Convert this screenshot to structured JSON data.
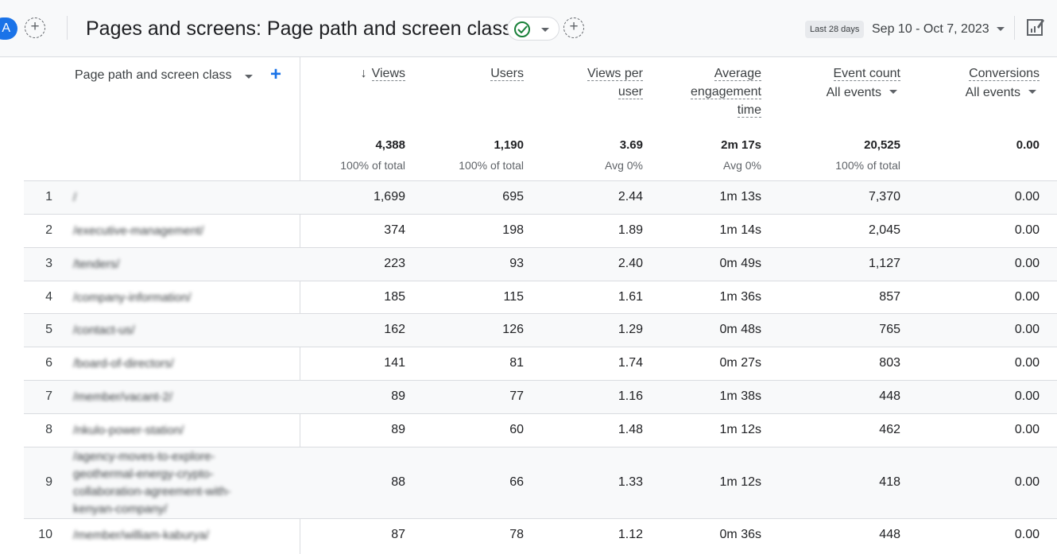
{
  "header": {
    "avatar_letter": "A",
    "title": "Pages and screens: Page path and screen class",
    "date_badge": "Last 28 days",
    "date_range": "Sep 10 - Oct 7, 2023"
  },
  "table": {
    "dimension_label": "Page path and screen class",
    "columns": [
      {
        "lines": [
          "Views"
        ],
        "sort": "↓"
      },
      {
        "lines": [
          "Users"
        ]
      },
      {
        "lines": [
          "Views per",
          "user"
        ]
      },
      {
        "lines": [
          "Average",
          "engagement",
          "time"
        ]
      },
      {
        "lines": [
          "Event count"
        ],
        "sub": "All events"
      },
      {
        "lines": [
          "Conversions"
        ],
        "sub": "All events"
      }
    ],
    "totals": [
      {
        "value": "4,388",
        "sub": "100% of total"
      },
      {
        "value": "1,190",
        "sub": "100% of total"
      },
      {
        "value": "3.69",
        "sub": "Avg 0%"
      },
      {
        "value": "2m 17s",
        "sub": "Avg 0%"
      },
      {
        "value": "20,525",
        "sub": "100% of total"
      },
      {
        "value": "0.00",
        "sub": ""
      }
    ],
    "rows": [
      {
        "rank": "1",
        "path": [
          "/"
        ],
        "values": [
          "1,699",
          "695",
          "2.44",
          "1m 13s",
          "7,370",
          "0.00"
        ]
      },
      {
        "rank": "2",
        "path": [
          "/executive-management/"
        ],
        "values": [
          "374",
          "198",
          "1.89",
          "1m 14s",
          "2,045",
          "0.00"
        ]
      },
      {
        "rank": "3",
        "path": [
          "/tenders/"
        ],
        "values": [
          "223",
          "93",
          "2.40",
          "0m 49s",
          "1,127",
          "0.00"
        ]
      },
      {
        "rank": "4",
        "path": [
          "/company-information/"
        ],
        "values": [
          "185",
          "115",
          "1.61",
          "1m 36s",
          "857",
          "0.00"
        ]
      },
      {
        "rank": "5",
        "path": [
          "/contact-us/"
        ],
        "values": [
          "162",
          "126",
          "1.29",
          "0m 48s",
          "765",
          "0.00"
        ]
      },
      {
        "rank": "6",
        "path": [
          "/board-of-directors/"
        ],
        "values": [
          "141",
          "81",
          "1.74",
          "0m 27s",
          "803",
          "0.00"
        ]
      },
      {
        "rank": "7",
        "path": [
          "/member/vacant-2/"
        ],
        "values": [
          "89",
          "77",
          "1.16",
          "1m 38s",
          "448",
          "0.00"
        ]
      },
      {
        "rank": "8",
        "path": [
          "/nkulo-power-station/"
        ],
        "values": [
          "89",
          "60",
          "1.48",
          "1m 12s",
          "462",
          "0.00"
        ]
      },
      {
        "rank": "9",
        "path": [
          "/agency-moves-to-explore-",
          "geothermal-energy-crypto-",
          "collaboration-agreement-with-",
          "kenyan-company/"
        ],
        "values": [
          "88",
          "66",
          "1.33",
          "1m 12s",
          "418",
          "0.00"
        ]
      },
      {
        "rank": "10",
        "path": [
          "/member/william-kaburya/"
        ],
        "values": [
          "87",
          "78",
          "1.12",
          "0m 36s",
          "448",
          "0.00"
        ]
      }
    ]
  }
}
